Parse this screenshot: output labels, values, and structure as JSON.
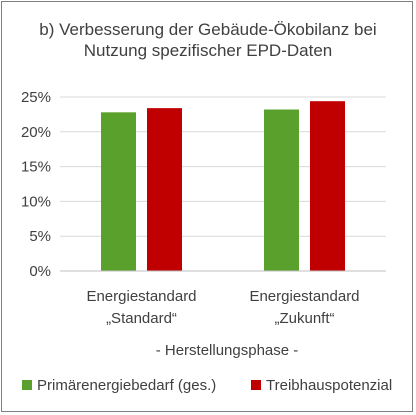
{
  "chart_data": {
    "type": "bar",
    "title": [
      "b) Verbesserung der Gebäude-Ökobilanz bei",
      "Nutzung spezifischer EPD-Daten"
    ],
    "categories": [
      [
        "Energiestandard",
        "„Standard“"
      ],
      [
        "Energiestandard",
        "„Zukunft“"
      ]
    ],
    "group_label": "- Herstellungsphase -",
    "yticks": [
      "0%",
      "5%",
      "10%",
      "15%",
      "20%",
      "25%"
    ],
    "ylim": [
      0,
      25
    ],
    "grid": true,
    "legend_position": "bottom",
    "series": [
      {
        "name": "Primärenergiebedarf (ges.)",
        "color": "#5aa02c",
        "values": [
          22.8,
          23.2
        ]
      },
      {
        "name": "Treibhauspotenzial",
        "color": "#c00000",
        "values": [
          23.4,
          24.4
        ]
      }
    ]
  }
}
